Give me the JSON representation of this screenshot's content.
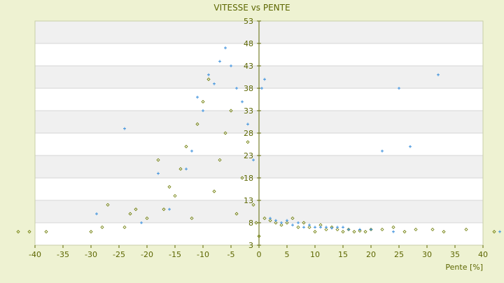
{
  "chart_data": {
    "type": "scatter",
    "title": "VITESSE vs PENTE",
    "xlabel": "Pente [%]",
    "ylabel": "",
    "xlim": [
      -40,
      40
    ],
    "ylim": [
      3,
      53
    ],
    "x_ticks": [
      -40,
      -35,
      -30,
      -25,
      -20,
      -15,
      -10,
      -5,
      0,
      5,
      10,
      15,
      20,
      25,
      30,
      35,
      40
    ],
    "y_ticks": [
      3,
      8,
      13,
      18,
      23,
      28,
      33,
      38,
      43,
      48,
      53
    ],
    "x_tick_labels": [
      "-40",
      "-35",
      "-30",
      "-25",
      "-20",
      "-15",
      "-10",
      "-5",
      "0",
      "5",
      "10",
      "15",
      "20",
      "25",
      "30",
      "35",
      "40"
    ],
    "y_tick_labels": [
      "3",
      "8",
      "13",
      "18",
      "23",
      "28",
      "33",
      "38",
      "43",
      "48",
      "53"
    ],
    "grid": "horizontal alternating bands",
    "series": [
      {
        "color": "#6b7a00",
        "marker": "diamond",
        "points": [
          [
            -43,
            6.0
          ],
          [
            -41,
            6.0
          ],
          [
            -38,
            6.0
          ],
          [
            -30,
            6.0
          ],
          [
            -28,
            7.0
          ],
          [
            -27,
            12.0
          ],
          [
            -24,
            7.0
          ],
          [
            -23,
            10.0
          ],
          [
            -22,
            11.0
          ],
          [
            -20,
            9.0
          ],
          [
            -18,
            22.0
          ],
          [
            -17,
            11.0
          ],
          [
            -16,
            16.0
          ],
          [
            -15,
            14.0
          ],
          [
            -14,
            20.0
          ],
          [
            -13,
            25.0
          ],
          [
            -12,
            9.0
          ],
          [
            -11,
            30.0
          ],
          [
            -10,
            35.0
          ],
          [
            -9,
            40.0
          ],
          [
            -8,
            15.0
          ],
          [
            -7,
            22.0
          ],
          [
            -6,
            28.0
          ],
          [
            -5,
            33.0
          ],
          [
            -4,
            10.0
          ],
          [
            -3,
            18.0
          ],
          [
            -2,
            26.0
          ],
          [
            -1,
            12.0
          ],
          [
            -0.5,
            8.0
          ],
          [
            0,
            5.0
          ],
          [
            1,
            9.0
          ],
          [
            2,
            8.5
          ],
          [
            3,
            8.0
          ],
          [
            4,
            7.5
          ],
          [
            5,
            8.0
          ],
          [
            6,
            9.0
          ],
          [
            7,
            7.0
          ],
          [
            8,
            8.0
          ],
          [
            9,
            7.0
          ],
          [
            10,
            6.0
          ],
          [
            11,
            7.5
          ],
          [
            12,
            6.5
          ],
          [
            13,
            7.0
          ],
          [
            14,
            6.5
          ],
          [
            15,
            6.0
          ],
          [
            16,
            6.5
          ],
          [
            17,
            6.0
          ],
          [
            18,
            6.2
          ],
          [
            19,
            6.0
          ],
          [
            20,
            6.5
          ],
          [
            22,
            6.5
          ],
          [
            24,
            7.0
          ],
          [
            26,
            6.0
          ],
          [
            28,
            6.5
          ],
          [
            31,
            6.5
          ],
          [
            33,
            6.0
          ],
          [
            37,
            6.5
          ],
          [
            42,
            6.0
          ]
        ]
      },
      {
        "color": "#3a8fdc",
        "marker": "plus",
        "points": [
          [
            -29,
            10.0
          ],
          [
            -24,
            29.0
          ],
          [
            -21,
            8.0
          ],
          [
            -18,
            19.0
          ],
          [
            -16,
            11.0
          ],
          [
            -13,
            20.0
          ],
          [
            -12,
            24.0
          ],
          [
            -11,
            36.0
          ],
          [
            -10,
            33.0
          ],
          [
            -9,
            41.0
          ],
          [
            -8,
            39.0
          ],
          [
            -7,
            44.0
          ],
          [
            -6,
            47.0
          ],
          [
            -5,
            43.0
          ],
          [
            -4,
            38.0
          ],
          [
            -3,
            35.0
          ],
          [
            -2,
            30.0
          ],
          [
            -1,
            22.0
          ],
          [
            0.5,
            38.0
          ],
          [
            1,
            40.0
          ],
          [
            2,
            9.0
          ],
          [
            3,
            8.5
          ],
          [
            4,
            8.0
          ],
          [
            5,
            8.5
          ],
          [
            6,
            7.5
          ],
          [
            7,
            8.0
          ],
          [
            8,
            7.0
          ],
          [
            9,
            7.5
          ],
          [
            10,
            7.0
          ],
          [
            11,
            7.0
          ],
          [
            12,
            7.0
          ],
          [
            13,
            6.8
          ],
          [
            14,
            7.0
          ],
          [
            15,
            7.0
          ],
          [
            16,
            6.5
          ],
          [
            18,
            6.5
          ],
          [
            20,
            6.5
          ],
          [
            22,
            24.0
          ],
          [
            24,
            6.0
          ],
          [
            25,
            38.0
          ],
          [
            27,
            25.0
          ],
          [
            32,
            41.0
          ],
          [
            43,
            6.0
          ]
        ]
      }
    ]
  }
}
